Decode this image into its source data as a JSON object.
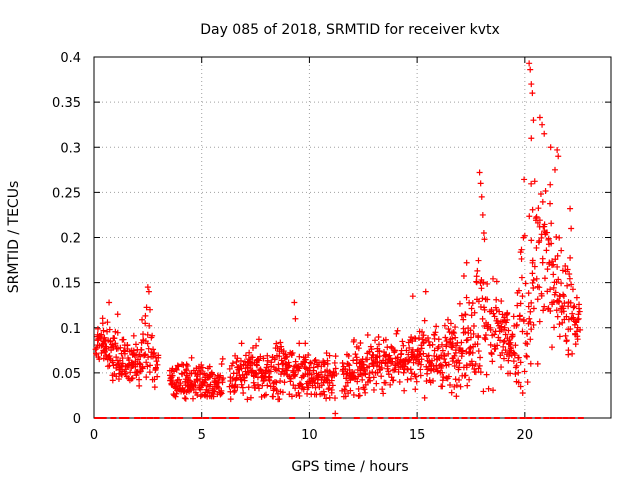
{
  "chart_data": {
    "type": "scatter",
    "title": "Day 085 of 2018, SRMTID for receiver kvtx",
    "xlabel": "GPS time / hours",
    "ylabel": "SRMTID / TECUs",
    "xlim": [
      0,
      24
    ],
    "ylim": [
      0,
      0.4
    ],
    "grid": true,
    "marker": "plus",
    "color": "#ff0000",
    "x_ticks": [
      {
        "value": 0,
        "label": "0"
      },
      {
        "value": 5,
        "label": "5"
      },
      {
        "value": 10,
        "label": "10"
      },
      {
        "value": 15,
        "label": "15"
      },
      {
        "value": 20,
        "label": "20"
      }
    ],
    "y_ticks": [
      {
        "value": 0,
        "label": "0"
      },
      {
        "value": 0.05,
        "label": "0.05"
      },
      {
        "value": 0.1,
        "label": "0.1"
      },
      {
        "value": 0.15,
        "label": "0.15"
      },
      {
        "value": 0.2,
        "label": "0.2"
      },
      {
        "value": 0.25,
        "label": "0.25"
      },
      {
        "value": 0.3,
        "label": "0.3"
      },
      {
        "value": 0.35,
        "label": "0.35"
      },
      {
        "value": 0.4,
        "label": "0.4"
      }
    ],
    "profile": {
      "description_hours": [
        0.0,
        0.5,
        1.0,
        2.0,
        2.5,
        3.0,
        4.0,
        5.0,
        6.0,
        7.0,
        8.0,
        9.0,
        10.0,
        11.0,
        12.0,
        13.0,
        14.0,
        15.0,
        16.0,
        17.0,
        17.5,
        18.0,
        18.5,
        19.0,
        19.5,
        20.0,
        20.5,
        21.0,
        21.5,
        22.0,
        22.5
      ],
      "median_tecu": [
        0.08,
        0.085,
        0.07,
        0.06,
        0.08,
        0.05,
        0.04,
        0.04,
        0.035,
        0.055,
        0.05,
        0.055,
        0.05,
        0.045,
        0.05,
        0.06,
        0.065,
        0.07,
        0.065,
        0.08,
        0.1,
        0.11,
        0.1,
        0.09,
        0.07,
        0.12,
        0.17,
        0.18,
        0.15,
        0.12,
        0.1
      ],
      "spread_tecu": [
        0.015,
        0.02,
        0.02,
        0.02,
        0.03,
        0.015,
        0.015,
        0.015,
        0.015,
        0.02,
        0.02,
        0.02,
        0.02,
        0.02,
        0.02,
        0.02,
        0.02,
        0.025,
        0.025,
        0.03,
        0.04,
        0.06,
        0.04,
        0.03,
        0.03,
        0.08,
        0.07,
        0.06,
        0.04,
        0.04,
        0.02
      ]
    },
    "peaks": [
      {
        "x": 0.7,
        "y": 0.128
      },
      {
        "x": 1.1,
        "y": 0.115
      },
      {
        "x": 2.5,
        "y": 0.145
      },
      {
        "x": 2.55,
        "y": 0.14
      },
      {
        "x": 2.6,
        "y": 0.12
      },
      {
        "x": 9.3,
        "y": 0.128
      },
      {
        "x": 9.35,
        "y": 0.11
      },
      {
        "x": 14.8,
        "y": 0.135
      },
      {
        "x": 15.4,
        "y": 0.14
      },
      {
        "x": 17.9,
        "y": 0.272
      },
      {
        "x": 17.95,
        "y": 0.26
      },
      {
        "x": 18.0,
        "y": 0.245
      },
      {
        "x": 18.05,
        "y": 0.225
      },
      {
        "x": 18.1,
        "y": 0.205
      },
      {
        "x": 17.3,
        "y": 0.172
      },
      {
        "x": 20.2,
        "y": 0.393
      },
      {
        "x": 20.25,
        "y": 0.386
      },
      {
        "x": 20.3,
        "y": 0.37
      },
      {
        "x": 20.35,
        "y": 0.36
      },
      {
        "x": 20.4,
        "y": 0.33
      },
      {
        "x": 20.3,
        "y": 0.31
      },
      {
        "x": 20.7,
        "y": 0.333
      },
      {
        "x": 20.8,
        "y": 0.325
      },
      {
        "x": 20.9,
        "y": 0.315
      },
      {
        "x": 21.2,
        "y": 0.3
      },
      {
        "x": 21.5,
        "y": 0.297
      },
      {
        "x": 21.55,
        "y": 0.29
      },
      {
        "x": 21.4,
        "y": 0.275
      },
      {
        "x": 22.1,
        "y": 0.232
      },
      {
        "x": 22.15,
        "y": 0.21
      },
      {
        "x": 20.6,
        "y": 0.06
      },
      {
        "x": 11.2,
        "y": 0.005
      }
    ],
    "zero_markers_hours": [
      0.15,
      0.3,
      0.45,
      0.9,
      1.3,
      1.5,
      2.0,
      2.3,
      2.6,
      2.9,
      3.4,
      3.7,
      4.0,
      4.7,
      4.9,
      5.2,
      5.6,
      5.8,
      6.0,
      6.4,
      6.6,
      9.2,
      10.6,
      11.2,
      11.35,
      12.2,
      12.8,
      13.3,
      13.8,
      14.1,
      14.5,
      14.9,
      15.3,
      15.7,
      16.1,
      16.4,
      16.8,
      17.2,
      17.6,
      18.0,
      18.3,
      18.7,
      19.2,
      19.5,
      19.9,
      20.2,
      20.6,
      21.0,
      21.3,
      21.6,
      21.9,
      22.2,
      22.6
    ]
  }
}
